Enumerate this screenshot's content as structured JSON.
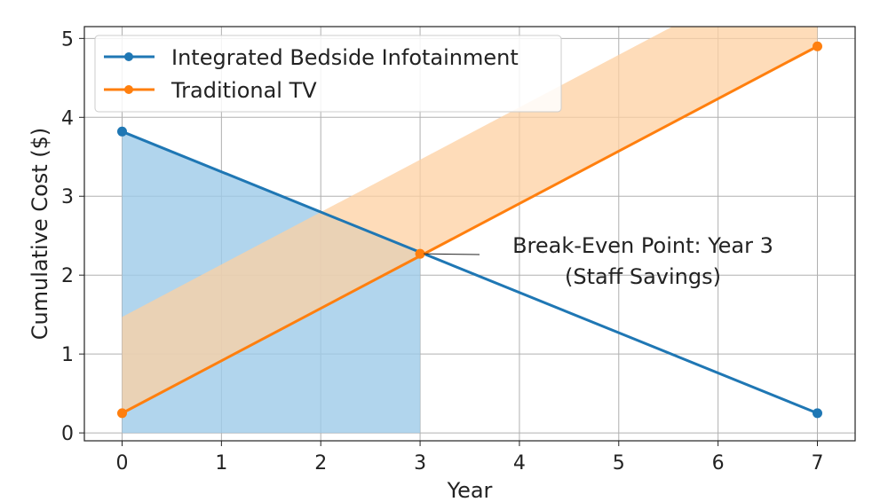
{
  "chart_data": {
    "type": "line",
    "title": "",
    "xlabel": "Year",
    "ylabel": "Cumulative Cost ($)",
    "xlim": [
      -0.38,
      7.38
    ],
    "ylim": [
      -0.1,
      5.15
    ],
    "xticks": [
      0,
      1,
      2,
      3,
      4,
      5,
      6,
      7
    ],
    "yticks": [
      0,
      1,
      2,
      3,
      4,
      5
    ],
    "grid": true,
    "legend_position": "top-left",
    "series": [
      {
        "name": "Integrated Bedside Infotainment",
        "x": [
          0,
          7
        ],
        "y": [
          3.82,
          0.25
        ],
        "color": "#1f77b4",
        "fill": {
          "x_range": [
            0,
            3
          ],
          "to": 0,
          "color": "#9ecae9"
        }
      },
      {
        "name": "Traditional TV",
        "x": [
          0,
          7
        ],
        "y": [
          0.25,
          4.9
        ],
        "color": "#ff7f0e",
        "band": {
          "upper_offset": 1.22,
          "color": "#fdd0a2"
        }
      }
    ],
    "annotation": {
      "text_line1": "Break-Even Point: Year 3",
      "text_line2": "(Staff Savings)",
      "x": 3,
      "y": 2.27
    }
  }
}
